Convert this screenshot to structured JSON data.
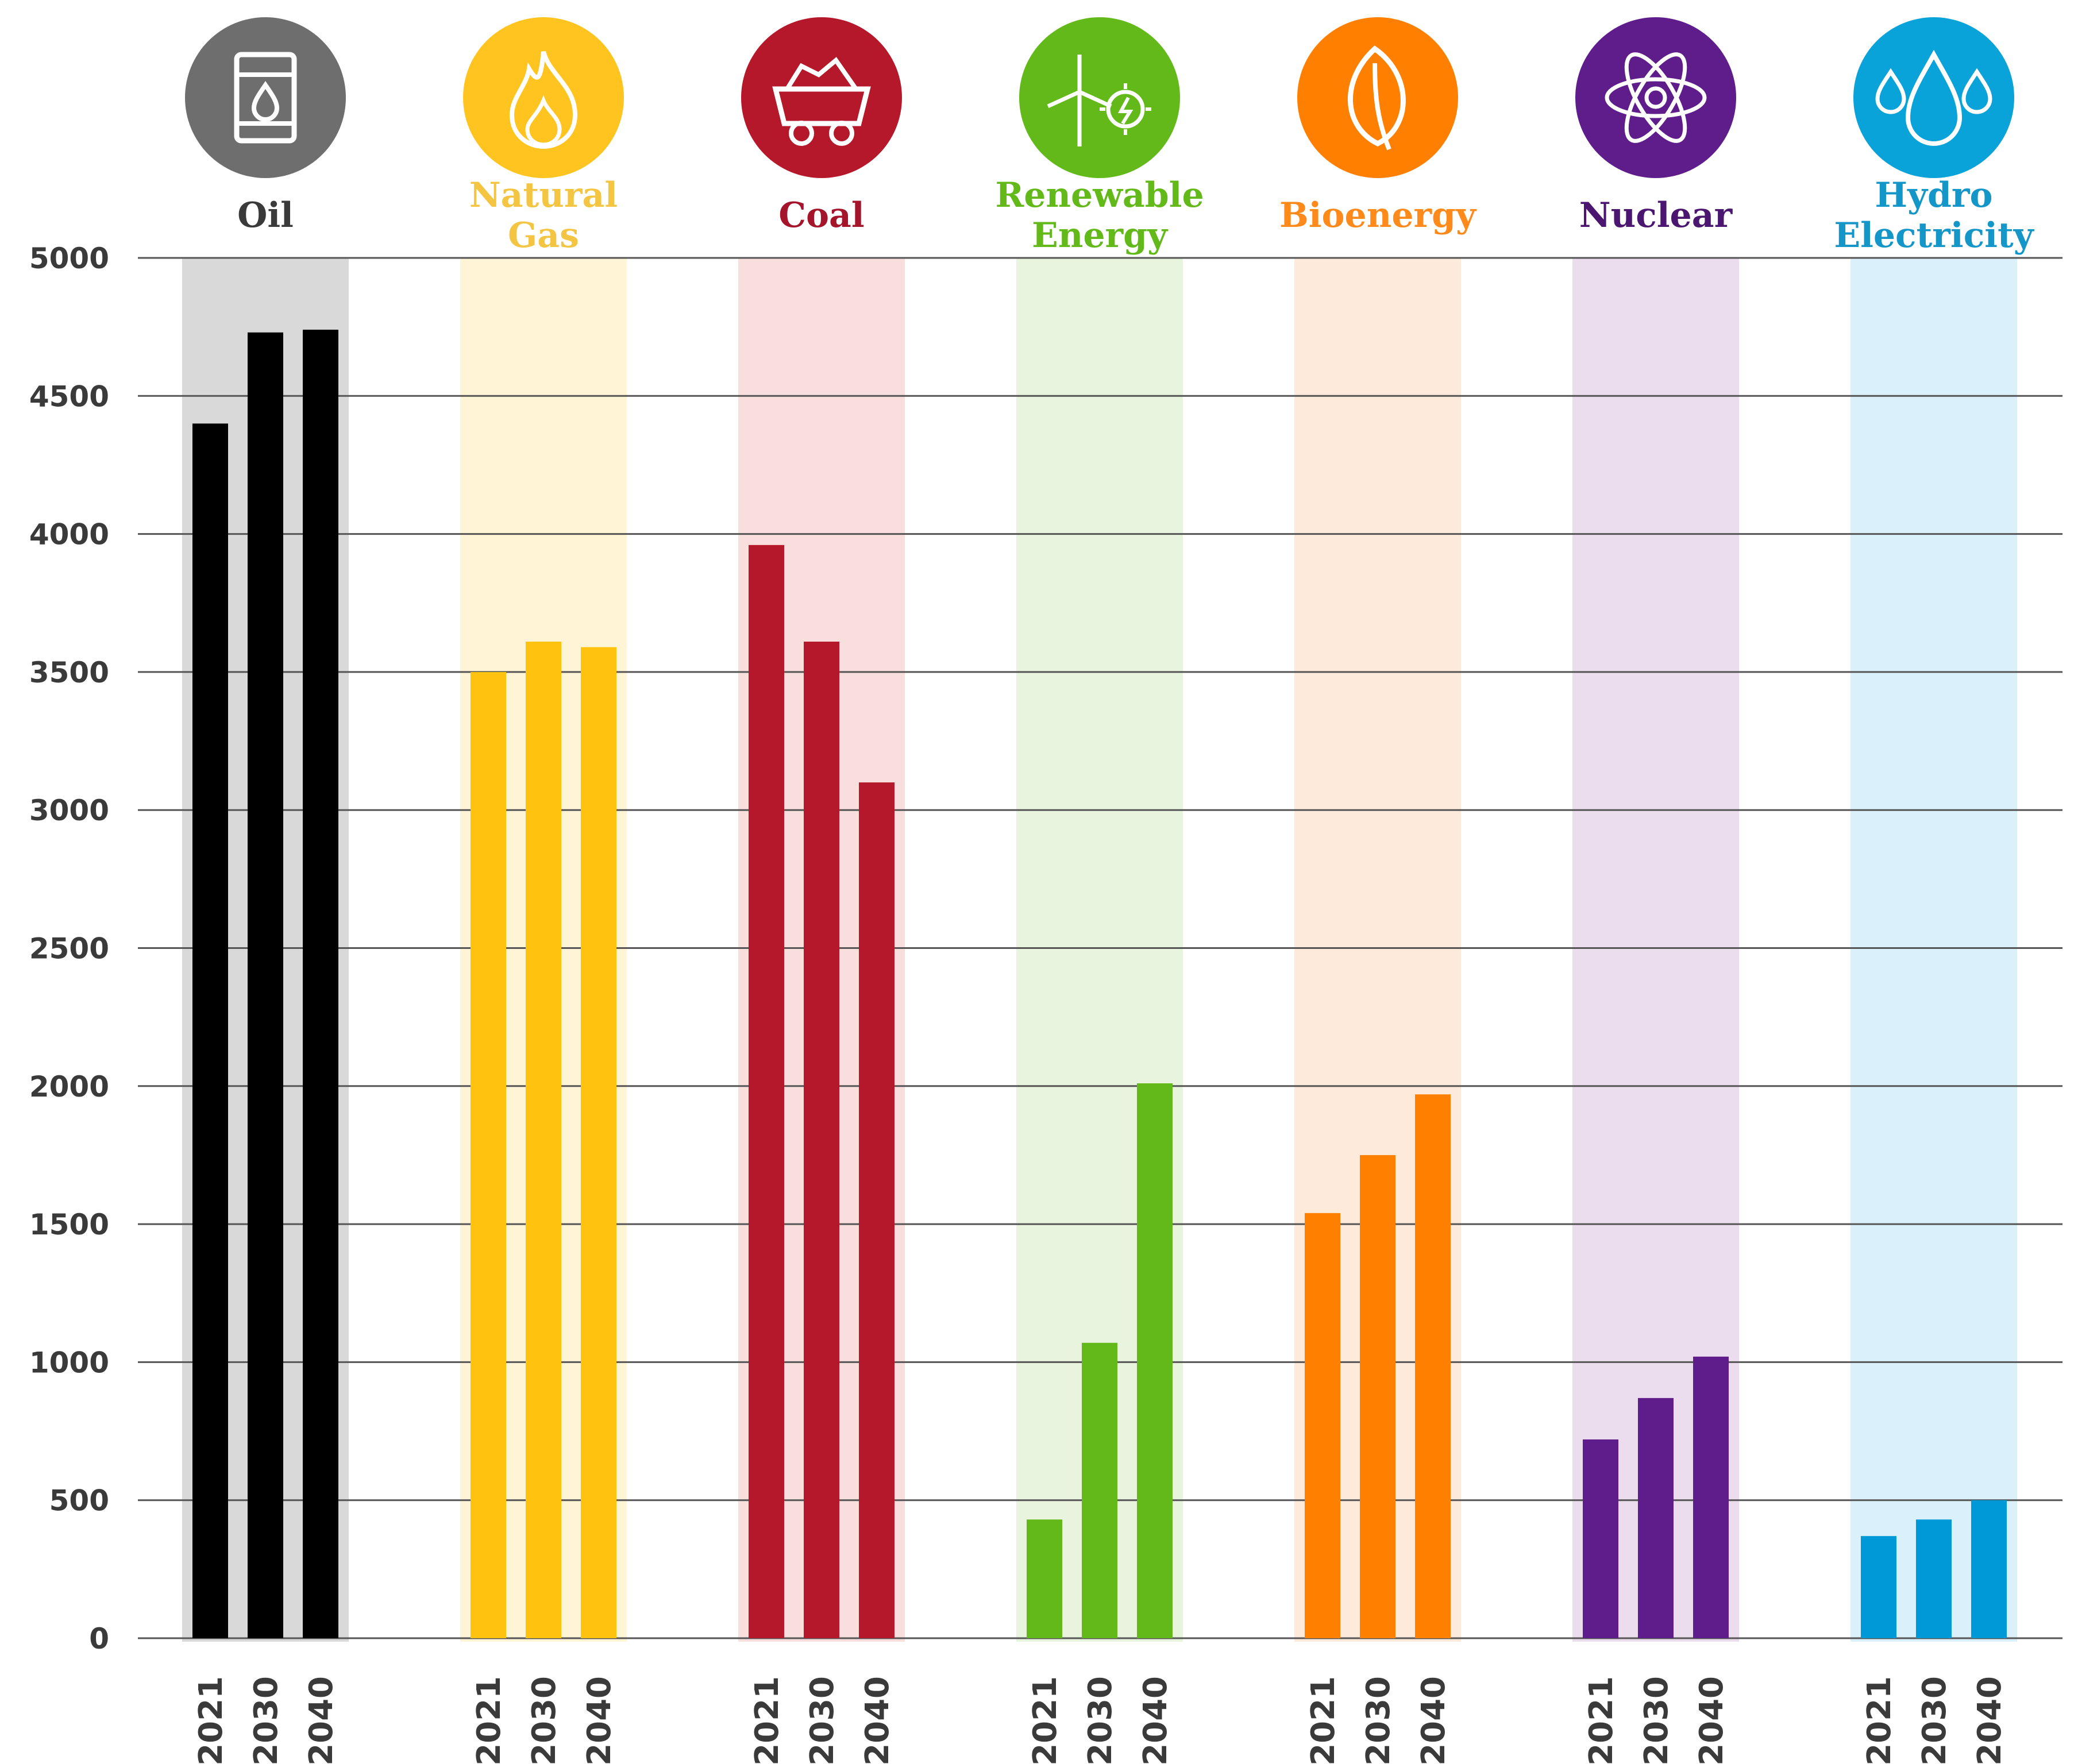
{
  "chart_data": {
    "type": "bar",
    "title": "",
    "xlabel": "",
    "ylabel": "",
    "ylim": [
      0,
      5000
    ],
    "yticks": [
      0,
      500,
      1000,
      1500,
      2000,
      2500,
      3000,
      3500,
      4000,
      4500,
      5000
    ],
    "years": [
      "2021",
      "2030",
      "2040"
    ],
    "categories": [
      {
        "key": "oil",
        "label": [
          "Oil"
        ],
        "icon": "oil-barrel-icon",
        "color": "#000000",
        "label_color": "#3a3a3a",
        "icon_bg": "#6e6e6e",
        "band_color": "#d9d9d9",
        "values": [
          4400,
          4730,
          4740
        ]
      },
      {
        "key": "natural-gas",
        "label": [
          "Natural",
          "Gas"
        ],
        "icon": "flame-icon",
        "color": "#ffc20e",
        "label_color": "#f4c542",
        "icon_bg": "#ffc41f",
        "band_color": "#fff4d6",
        "values": [
          3500,
          3610,
          3590
        ]
      },
      {
        "key": "coal",
        "label": [
          "Coal"
        ],
        "icon": "coal-cart-icon",
        "color": "#b5172b",
        "label_color": "#a4142b",
        "icon_bg": "#b5172b",
        "band_color": "#f9dede",
        "values": [
          3960,
          3610,
          3100
        ]
      },
      {
        "key": "renewable-energy",
        "label": [
          "Renewable",
          "Energy"
        ],
        "icon": "wind-solar-icon",
        "color": "#63b91a",
        "label_color": "#63b91a",
        "icon_bg": "#63b91a",
        "band_color": "#e9f4df",
        "values": [
          430,
          1070,
          2010
        ]
      },
      {
        "key": "bioenergy",
        "label": [
          "Bioenergy"
        ],
        "icon": "leaf-icon",
        "color": "#ff8000",
        "label_color": "#ff8a1c",
        "icon_bg": "#ff8000",
        "band_color": "#fdeadb",
        "values": [
          1540,
          1750,
          1970
        ]
      },
      {
        "key": "nuclear",
        "label": [
          "Nuclear"
        ],
        "icon": "atom-icon",
        "color": "#5e1d8a",
        "label_color": "#4a1670",
        "icon_bg": "#5e1d8a",
        "band_color": "#ebdcee",
        "values": [
          720,
          870,
          1020
        ]
      },
      {
        "key": "hydro-electricity",
        "label": [
          "Hydro",
          "Electricity"
        ],
        "icon": "water-drops-icon",
        "color": "#0099d8",
        "label_color": "#1596c8",
        "icon_bg": "#0aa3d9",
        "band_color": "#daf0fa",
        "values": [
          370,
          430,
          500
        ]
      }
    ]
  }
}
